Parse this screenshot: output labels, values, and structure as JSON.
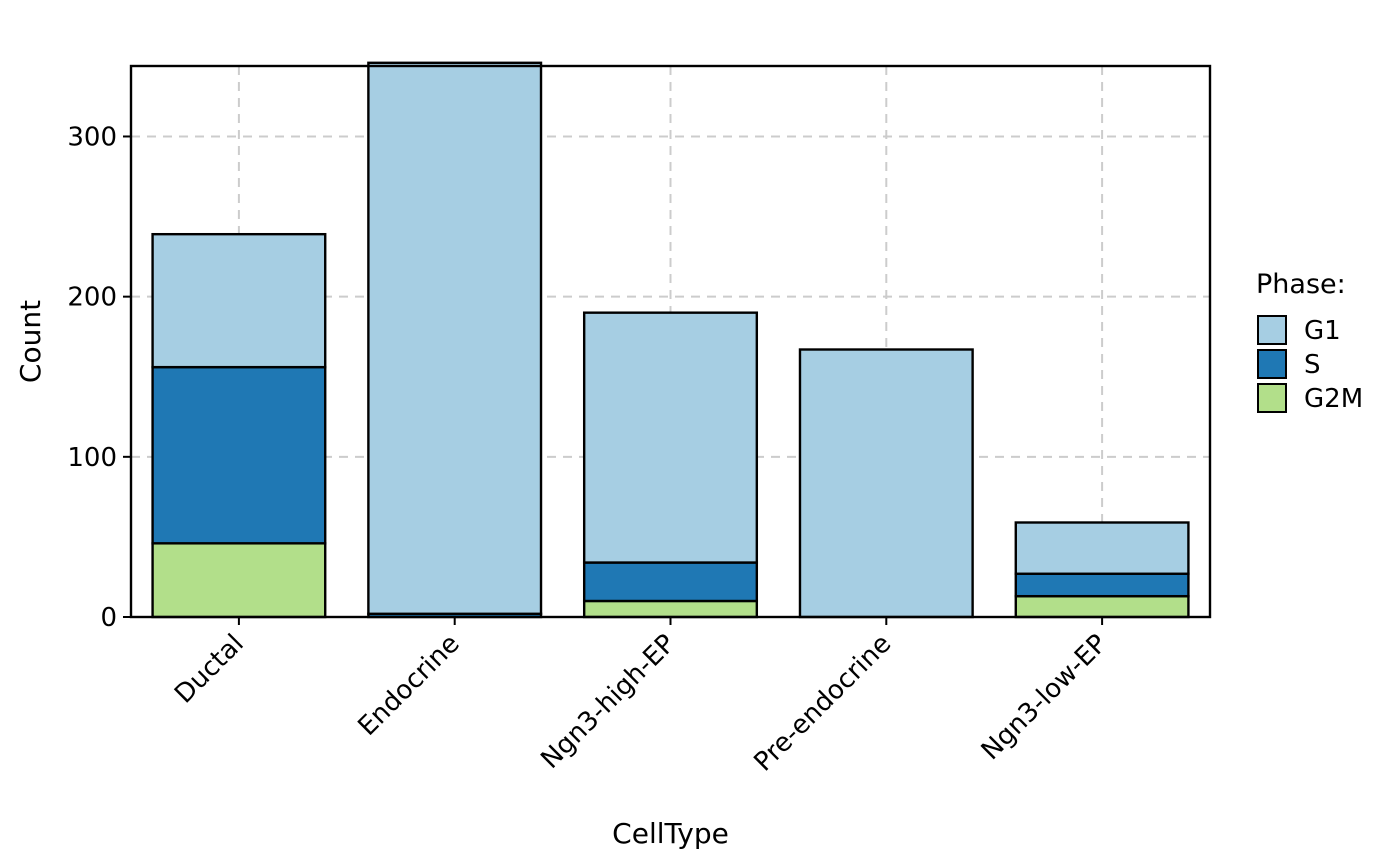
{
  "chart_data": {
    "type": "bar",
    "stacked": true,
    "categories": [
      "Ductal",
      "Endocrine",
      "Ngn3-high-EP",
      "Pre-endocrine",
      "Ngn3-low-EP"
    ],
    "series": [
      {
        "name": "G2M",
        "color": "#b2df8a",
        "values": [
          46,
          0,
          10,
          0,
          13
        ]
      },
      {
        "name": "S",
        "color": "#1f78b4",
        "values": [
          110,
          2,
          24,
          0,
          14
        ]
      },
      {
        "name": "G1",
        "color": "#a6cee3",
        "values": [
          83,
          344,
          156,
          167,
          32
        ]
      }
    ],
    "xlabel": "CellType",
    "ylabel": "Count",
    "ylim": [
      0,
      344
    ],
    "yticks": [
      0,
      100,
      200,
      300
    ],
    "grid": true,
    "legend": {
      "title": "Phase:",
      "placement": "right",
      "order": [
        "G1",
        "S",
        "G2M"
      ]
    }
  }
}
